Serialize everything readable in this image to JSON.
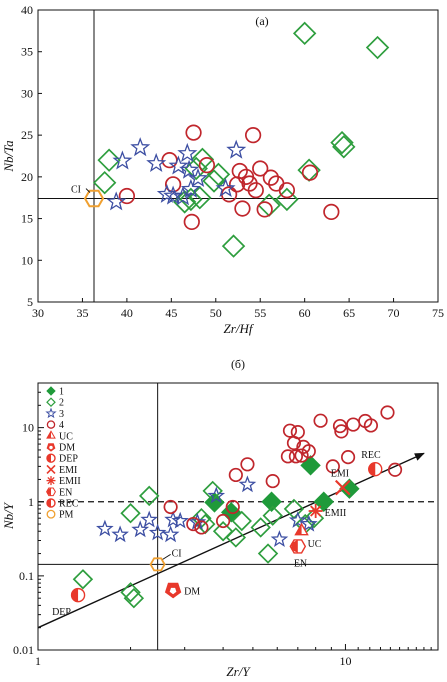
{
  "chart_data": [
    {
      "type": "scatter",
      "panel_label": "(a)",
      "xlabel": "Zr/Hf",
      "ylabel": "Nb/Ta",
      "xlim": [
        30,
        75
      ],
      "ylim": [
        5,
        40
      ],
      "xticks": [
        30,
        35,
        40,
        45,
        50,
        55,
        60,
        65,
        70,
        75
      ],
      "yticks": [
        5,
        10,
        15,
        20,
        25,
        30,
        35,
        40
      ],
      "reference_lines": {
        "x": 36.3,
        "y": 17.4
      },
      "reference_point": {
        "label": "CI",
        "x": 36.3,
        "y": 17.4
      },
      "series": [
        {
          "marker": "diamond",
          "color": "#2e9e3e",
          "points": [
            [
              37.5,
              19.3
            ],
            [
              38,
              22
            ],
            [
              46.5,
              17
            ],
            [
              47.2,
              17.3
            ],
            [
              47.8,
              21
            ],
            [
              48.2,
              17.5
            ],
            [
              48.5,
              22.1
            ],
            [
              49.8,
              19.5
            ],
            [
              50.3,
              20.3
            ],
            [
              52,
              11.7
            ],
            [
              56,
              16.6
            ],
            [
              58,
              17.3
            ],
            [
              60,
              37.2
            ],
            [
              60.5,
              20.8
            ],
            [
              64.2,
              24.1
            ],
            [
              64.4,
              23.6
            ],
            [
              68.2,
              35.5
            ]
          ]
        },
        {
          "marker": "circle",
          "color": "#c0262c",
          "points": [
            [
              40,
              17.7
            ],
            [
              44.8,
              22
            ],
            [
              45.2,
              19.1
            ],
            [
              47.3,
              14.6
            ],
            [
              47.5,
              25.3
            ],
            [
              49,
              21.4
            ],
            [
              51.5,
              17.9
            ],
            [
              52.4,
              19.1
            ],
            [
              52.7,
              20.7
            ],
            [
              53,
              16.2
            ],
            [
              53.4,
              20
            ],
            [
              53.8,
              19.2
            ],
            [
              54.2,
              25
            ],
            [
              54.5,
              18.4
            ],
            [
              55,
              21
            ],
            [
              55.5,
              16.1
            ],
            [
              56.2,
              19.9
            ],
            [
              56.8,
              19.2
            ],
            [
              58,
              18.4
            ],
            [
              60.6,
              20.5
            ],
            [
              63,
              15.8
            ]
          ]
        },
        {
          "marker": "star",
          "color": "#3d4fa3",
          "points": [
            [
              38.8,
              17
            ],
            [
              39.5,
              21.9
            ],
            [
              41.5,
              23.5
            ],
            [
              43.3,
              21.6
            ],
            [
              44.5,
              17.9
            ],
            [
              45.2,
              17.7
            ],
            [
              45.8,
              21.3
            ],
            [
              46.3,
              17.6
            ],
            [
              46.8,
              22.8
            ],
            [
              47,
              20.8
            ],
            [
              47.2,
              18.5
            ],
            [
              48,
              19.8
            ],
            [
              51.1,
              18.6
            ],
            [
              52.3,
              23.2
            ]
          ]
        }
      ]
    },
    {
      "type": "scatter",
      "panel_label": "(б)",
      "xlabel": "Zr/Y",
      "ylabel": "Nb/Y",
      "x_scale": "log",
      "y_scale": "log",
      "xlim": [
        1,
        20
      ],
      "ylim": [
        0.01,
        40
      ],
      "xticks": [
        1,
        10
      ],
      "yticks": [
        0.01,
        0.1,
        1,
        10
      ],
      "reference_lines": {
        "x": 2.45,
        "y": [
          1,
          0.143
        ]
      },
      "trend_arrow": {
        "from": [
          1,
          0.02
        ],
        "to": [
          18,
          4.5
        ]
      },
      "legend": [
        "1",
        "2",
        "3",
        "4",
        "UC",
        "DM",
        "DEP",
        "EMI",
        "EMII",
        "EN",
        "REC",
        "PM"
      ],
      "reference_points": [
        {
          "label": "CI",
          "x": 2.45,
          "y": 0.143,
          "marker": "hexagon-open"
        },
        {
          "label": "UC",
          "x": 7.2,
          "y": 0.4,
          "marker": "triangle"
        },
        {
          "label": "DM",
          "x": 2.75,
          "y": 0.065,
          "marker": "pentagon"
        },
        {
          "label": "DEP",
          "x": 1.35,
          "y": 0.055,
          "marker": "half-circle"
        },
        {
          "label": "EMI",
          "x": 9.8,
          "y": 1.55,
          "marker": "x"
        },
        {
          "label": "EMII",
          "x": 8.0,
          "y": 0.75,
          "marker": "asterisk"
        },
        {
          "label": "EN",
          "x": 7.0,
          "y": 0.25,
          "marker": "hexagon"
        },
        {
          "label": "REC",
          "x": 12.5,
          "y": 2.75,
          "marker": "half-circle"
        }
      ],
      "series": [
        {
          "name": "1",
          "marker": "diamond-filled",
          "color": "#1f9a3a",
          "points": [
            [
              3.75,
              0.98
            ],
            [
              4.25,
              0.72
            ],
            [
              5.75,
              1.0
            ],
            [
              7.7,
              3.1
            ],
            [
              8.5,
              1.0
            ],
            [
              10.3,
              1.5
            ]
          ]
        },
        {
          "name": "2",
          "marker": "diamond",
          "color": "#2e9e3e",
          "points": [
            [
              1.4,
              0.09
            ],
            [
              2.0,
              0.7
            ],
            [
              2.0,
              0.06
            ],
            [
              2.05,
              0.05
            ],
            [
              2.3,
              1.2
            ],
            [
              3.4,
              0.6
            ],
            [
              3.5,
              0.5
            ],
            [
              3.7,
              1.4
            ],
            [
              4.0,
              0.4
            ],
            [
              4.4,
              0.33
            ],
            [
              4.6,
              0.55
            ],
            [
              5.3,
              0.45
            ],
            [
              5.6,
              0.2
            ],
            [
              5.8,
              0.65
            ],
            [
              6.8,
              0.8
            ],
            [
              7.4,
              0.5
            ],
            [
              7.9,
              0.6
            ]
          ]
        },
        {
          "name": "3",
          "marker": "star",
          "color": "#3d4fa3",
          "points": [
            [
              1.65,
              0.43
            ],
            [
              1.85,
              0.36
            ],
            [
              2.15,
              0.42
            ],
            [
              2.3,
              0.57
            ],
            [
              2.45,
              0.38
            ],
            [
              2.7,
              0.36
            ],
            [
              2.75,
              0.57
            ],
            [
              2.9,
              0.55
            ],
            [
              3.3,
              0.53
            ],
            [
              3.8,
              1.2
            ],
            [
              4.8,
              1.7
            ],
            [
              6.1,
              0.31
            ],
            [
              7.0,
              0.56
            ],
            [
              7.6,
              0.5
            ]
          ]
        },
        {
          "name": "4",
          "marker": "circle",
          "color": "#c0262c",
          "points": [
            [
              2.7,
              0.85
            ],
            [
              3.2,
              0.5
            ],
            [
              3.4,
              0.45
            ],
            [
              4.0,
              0.55
            ],
            [
              4.3,
              0.85
            ],
            [
              4.4,
              2.3
            ],
            [
              4.8,
              3.2
            ],
            [
              5.8,
              1.9
            ],
            [
              6.5,
              4.1
            ],
            [
              6.6,
              9.1
            ],
            [
              6.8,
              6.2
            ],
            [
              6.9,
              4.1
            ],
            [
              7.0,
              8.7
            ],
            [
              7.2,
              4.2
            ],
            [
              7.3,
              5.5
            ],
            [
              7.6,
              4.8
            ],
            [
              8.3,
              12.4
            ],
            [
              9.1,
              3.0
            ],
            [
              9.6,
              10.5
            ],
            [
              9.7,
              8.9
            ],
            [
              10.2,
              4.0
            ],
            [
              10.6,
              11.0
            ],
            [
              11.6,
              12.3
            ],
            [
              12.1,
              10.7
            ],
            [
              13.7,
              16.0
            ],
            [
              14.5,
              2.7
            ]
          ]
        }
      ]
    }
  ]
}
